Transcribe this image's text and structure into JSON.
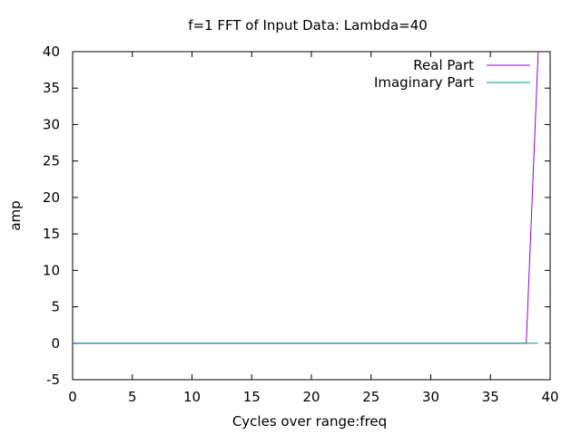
{
  "chart_data": {
    "type": "line",
    "title": "f=1 FFT of Input Data: Lambda=40",
    "xlabel": "Cycles over range:freq",
    "ylabel": "amp",
    "xlim": [
      0,
      40
    ],
    "ylim": [
      -5,
      40
    ],
    "x_ticks": [
      "0",
      "5",
      "10",
      "15",
      "20",
      "25",
      "30",
      "35",
      "40"
    ],
    "y_ticks": [
      "-5",
      "0",
      "5",
      "10",
      "15",
      "20",
      "25",
      "30",
      "35",
      "40"
    ],
    "grid": false,
    "legend_position": "top-right",
    "series": [
      {
        "name": "Real Part",
        "color": "#9400d3",
        "points": [
          [
            0,
            0
          ],
          [
            38,
            0
          ],
          [
            39,
            40
          ]
        ]
      },
      {
        "name": "Imaginary Part",
        "color": "#009e73",
        "points": [
          [
            0,
            0
          ],
          [
            39,
            0
          ]
        ]
      }
    ]
  }
}
